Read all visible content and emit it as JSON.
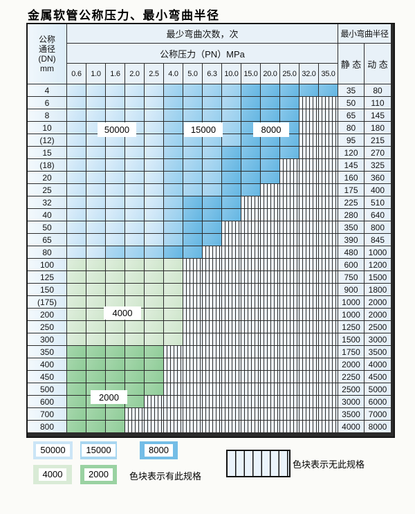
{
  "title": "金属软管公称压力、最小弯曲半径",
  "colors": {
    "cycles_50000": "#cbe5f6",
    "cycles_15000": "#a8d6f0",
    "cycles_8000": "#74bde6",
    "cycles_4000": "#d9ebd6",
    "cycles_2000": "#9ad2a2",
    "hatch_line": "#2b2b2b",
    "grid_line": "#2b2b2b"
  },
  "table": {
    "corner": {
      "line1": "公称",
      "line2": "通径",
      "line3": "(DN)",
      "line4": "mm"
    },
    "bend_cycles_header": "最少弯曲次数，次",
    "pressure_header": "公称压力（PN）MPa",
    "radius_header": "最小弯曲半径",
    "static_label": "静 态",
    "dynamic_label": "动 态",
    "pressures": [
      "0.6",
      "1.0",
      "1.6",
      "2.0",
      "2.5",
      "4.0",
      "5.0",
      "6.3",
      "10.0",
      "15.0",
      "20.0",
      "25.0",
      "32.0",
      "35.0"
    ],
    "rows": [
      {
        "dn": "4",
        "spans": [
          [
            "50000",
            5
          ],
          [
            "15000",
            4
          ],
          [
            "8000",
            5
          ]
        ],
        "static": "35",
        "dynamic": "80"
      },
      {
        "dn": "6",
        "spans": [
          [
            "50000",
            5
          ],
          [
            "15000",
            4
          ],
          [
            "8000",
            3
          ]
        ],
        "static": "50",
        "dynamic": "110"
      },
      {
        "dn": "8",
        "spans": [
          [
            "50000",
            5
          ],
          [
            "15000",
            4
          ],
          [
            "8000",
            3
          ]
        ],
        "static": "65",
        "dynamic": "145"
      },
      {
        "dn": "10",
        "spans": [
          [
            "50000",
            5
          ],
          [
            "15000",
            4
          ],
          [
            "8000",
            3
          ]
        ],
        "static": "80",
        "dynamic": "180"
      },
      {
        "dn": "(12)",
        "spans": [
          [
            "50000",
            5
          ],
          [
            "15000",
            4
          ],
          [
            "8000",
            3
          ]
        ],
        "static": "95",
        "dynamic": "215"
      },
      {
        "dn": "15",
        "spans": [
          [
            "50000",
            5
          ],
          [
            "15000",
            3
          ],
          [
            "8000",
            4
          ]
        ],
        "static": "120",
        "dynamic": "270"
      },
      {
        "dn": "(18)",
        "spans": [
          [
            "50000",
            5
          ],
          [
            "15000",
            3
          ],
          [
            "8000",
            3
          ]
        ],
        "static": "145",
        "dynamic": "325"
      },
      {
        "dn": "20",
        "spans": [
          [
            "50000",
            5
          ],
          [
            "15000",
            3
          ],
          [
            "8000",
            3
          ]
        ],
        "static": "160",
        "dynamic": "360"
      },
      {
        "dn": "25",
        "spans": [
          [
            "50000",
            5
          ],
          [
            "15000",
            3
          ],
          [
            "8000",
            2
          ]
        ],
        "static": "175",
        "dynamic": "400"
      },
      {
        "dn": "32",
        "spans": [
          [
            "50000",
            5
          ],
          [
            "15000",
            1
          ],
          [
            "8000",
            3
          ]
        ],
        "static": "225",
        "dynamic": "510"
      },
      {
        "dn": "40",
        "spans": [
          [
            "50000",
            5
          ],
          [
            "15000",
            1
          ],
          [
            "8000",
            3
          ]
        ],
        "static": "280",
        "dynamic": "640"
      },
      {
        "dn": "50",
        "spans": [
          [
            "50000",
            5
          ],
          [
            "15000",
            1
          ],
          [
            "8000",
            2
          ]
        ],
        "static": "350",
        "dynamic": "800"
      },
      {
        "dn": "65",
        "spans": [
          [
            "50000",
            5
          ],
          [
            "15000",
            1
          ],
          [
            "8000",
            2
          ]
        ],
        "static": "390",
        "dynamic": "845"
      },
      {
        "dn": "80",
        "spans": [
          [
            "50000",
            2
          ],
          [
            "15000",
            3
          ],
          [
            "8000",
            2
          ]
        ],
        "static": "480",
        "dynamic": "1000"
      },
      {
        "dn": "100",
        "spans": [
          [
            "4000",
            6
          ]
        ],
        "static": "600",
        "dynamic": "1200"
      },
      {
        "dn": "125",
        "spans": [
          [
            "4000",
            6
          ]
        ],
        "static": "750",
        "dynamic": "1500"
      },
      {
        "dn": "150",
        "spans": [
          [
            "4000",
            6
          ]
        ],
        "static": "900",
        "dynamic": "1800"
      },
      {
        "dn": "(175)",
        "spans": [
          [
            "4000",
            6
          ]
        ],
        "static": "1000",
        "dynamic": "2000"
      },
      {
        "dn": "200",
        "spans": [
          [
            "4000",
            6
          ]
        ],
        "static": "1000",
        "dynamic": "2000"
      },
      {
        "dn": "250",
        "spans": [
          [
            "4000",
            6
          ]
        ],
        "static": "1250",
        "dynamic": "2500"
      },
      {
        "dn": "300",
        "spans": [
          [
            "4000",
            6
          ]
        ],
        "static": "1500",
        "dynamic": "3000"
      },
      {
        "dn": "350",
        "spans": [
          [
            "2000",
            5
          ]
        ],
        "static": "1750",
        "dynamic": "3500"
      },
      {
        "dn": "400",
        "spans": [
          [
            "2000",
            5
          ]
        ],
        "static": "2000",
        "dynamic": "4000"
      },
      {
        "dn": "450",
        "spans": [
          [
            "2000",
            5
          ]
        ],
        "static": "2250",
        "dynamic": "4500"
      },
      {
        "dn": "500",
        "spans": [
          [
            "2000",
            5
          ]
        ],
        "static": "2500",
        "dynamic": "5000"
      },
      {
        "dn": "600",
        "spans": [
          [
            "2000",
            4
          ]
        ],
        "static": "3000",
        "dynamic": "6000"
      },
      {
        "dn": "700",
        "spans": [
          [
            "2000",
            3
          ]
        ],
        "static": "3500",
        "dynamic": "7000"
      },
      {
        "dn": "800",
        "spans": [
          [
            "2000",
            3
          ]
        ],
        "static": "4000",
        "dynamic": "8000"
      }
    ]
  },
  "overlays": {
    "label_50000": "50000",
    "label_15000": "15000",
    "label_8000": "8000",
    "label_4000": "4000",
    "label_2000": "2000"
  },
  "legend": {
    "items": [
      {
        "value": "50000"
      },
      {
        "value": "15000"
      },
      {
        "value": "8000"
      },
      {
        "value": "4000"
      },
      {
        "value": "2000"
      }
    ],
    "have_text": "色块表示有此规格",
    "none_text": "色块表示无此规格"
  }
}
